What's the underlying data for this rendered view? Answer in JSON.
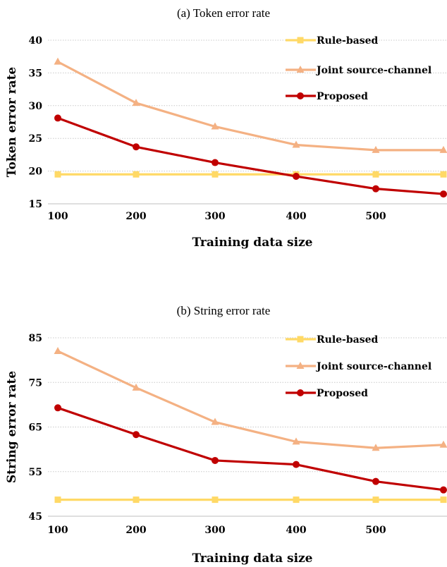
{
  "chart_data": [
    {
      "type": "line",
      "title": "(a) Token error rate",
      "xlabel": "Training data size",
      "ylabel": "Token error rate",
      "ylim": [
        15,
        40
      ],
      "yticks": [
        15,
        20,
        25,
        30,
        35,
        40
      ],
      "xlim": [
        100,
        590
      ],
      "xticks": [
        100,
        200,
        300,
        400,
        500
      ],
      "grid": "horizontal dotted",
      "legend_position": "top-right",
      "x": [
        100,
        200,
        300,
        400,
        500,
        590
      ],
      "series": [
        {
          "name": "Rule-based",
          "color": "#FFD966",
          "marker": "square",
          "values": [
            19.5,
            19.5,
            19.5,
            19.5,
            19.5,
            19.5
          ]
        },
        {
          "name": "Joint source-channel",
          "color": "#F4B183",
          "marker": "triangle",
          "values": [
            36.7,
            30.4,
            26.8,
            24.0,
            23.2,
            23.2
          ]
        },
        {
          "name": "Proposed",
          "color": "#C00000",
          "marker": "circle",
          "values": [
            28.1,
            23.7,
            21.3,
            19.2,
            17.3,
            16.5
          ]
        }
      ]
    },
    {
      "type": "line",
      "title": "(b) String error rate",
      "xlabel": "Training data size",
      "ylabel": "String error rate",
      "ylim": [
        45,
        85
      ],
      "yticks": [
        45,
        55,
        65,
        75,
        85
      ],
      "xlim": [
        100,
        590
      ],
      "xticks": [
        100,
        200,
        300,
        400,
        500
      ],
      "grid": "horizontal dotted",
      "legend_position": "top-right",
      "x": [
        100,
        200,
        300,
        400,
        500,
        590
      ],
      "series": [
        {
          "name": "Rule-based",
          "color": "#FFD966",
          "marker": "square",
          "values": [
            48.7,
            48.7,
            48.7,
            48.7,
            48.7,
            48.7
          ]
        },
        {
          "name": "Joint source-channel",
          "color": "#F4B183",
          "marker": "triangle",
          "values": [
            82.0,
            73.8,
            66.1,
            61.7,
            60.3,
            61.0
          ]
        },
        {
          "name": "Proposed",
          "color": "#C00000",
          "marker": "circle",
          "values": [
            69.3,
            63.3,
            57.5,
            56.6,
            52.8,
            50.9
          ]
        }
      ]
    }
  ]
}
